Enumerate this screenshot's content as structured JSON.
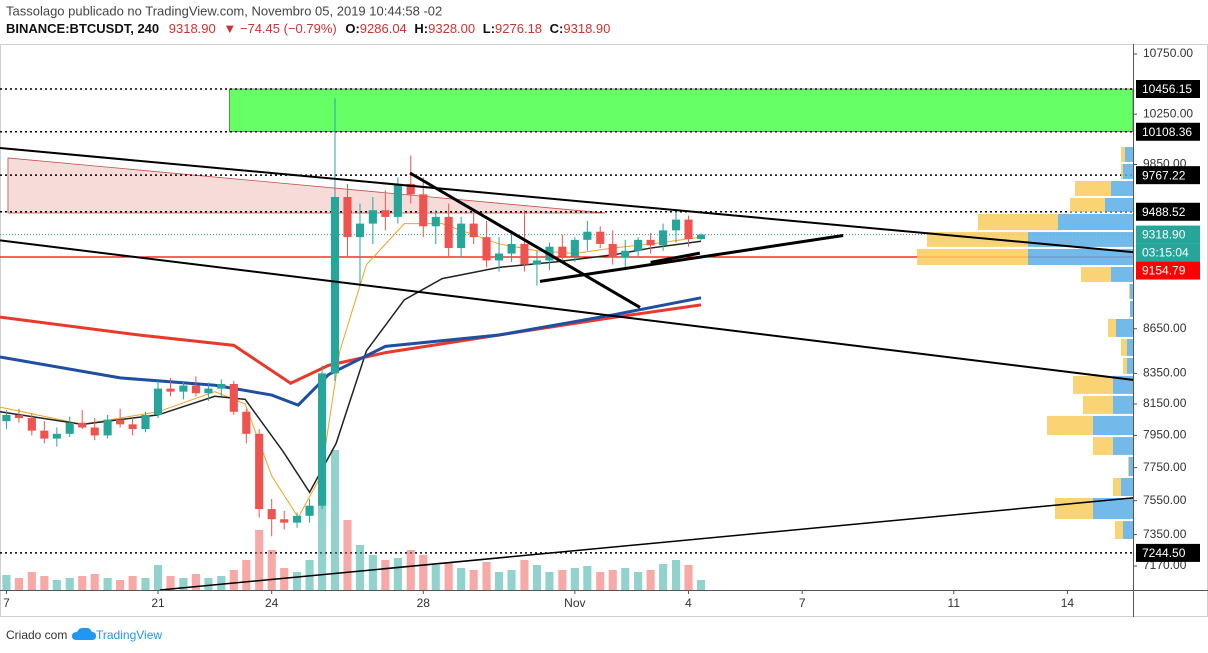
{
  "header": {
    "author_line": "Tassolago publicado no TradingView.com, Novembro 05, 2019 10:44:58 -02",
    "symbol": "BINANCE:BTCUSDT, 240",
    "last": "9318.90",
    "change": "▼ −74.45 (−0.79%)",
    "ohlc": [
      {
        "label": "O:",
        "value": "9286.04"
      },
      {
        "label": "H:",
        "value": "9328.00"
      },
      {
        "label": "L:",
        "value": "9276.18"
      },
      {
        "label": "C:",
        "value": "9318.90"
      }
    ]
  },
  "chart_data": {
    "type": "candlestick",
    "log_scale": true,
    "grid": false,
    "up_color": "#26a69a",
    "down_color": "#ef5350",
    "ylim": [
      7035,
      10835
    ],
    "yticks": [
      {
        "value": 10750,
        "label": "10750.00"
      },
      {
        "value": 10250,
        "label": "10250.00"
      },
      {
        "value": 9850,
        "label": "9850.00"
      },
      {
        "value": 8650,
        "label": "8650.00"
      },
      {
        "value": 8350,
        "label": "8350.00"
      },
      {
        "value": 8150,
        "label": "8150.00"
      },
      {
        "value": 7950,
        "label": "7950.00"
      },
      {
        "value": 7750,
        "label": "7750.00"
      },
      {
        "value": 7550,
        "label": "7550.00"
      },
      {
        "value": 7350,
        "label": "7350.00"
      },
      {
        "value": 7170,
        "label": "7170.00"
      }
    ],
    "xlim": [
      16.83,
      46.73
    ],
    "xticks": [
      {
        "value": 17,
        "label": "7"
      },
      21,
      24,
      28,
      {
        "value": 32,
        "label": "Nov"
      },
      {
        "value": 35,
        "label": "4"
      },
      {
        "value": 38,
        "label": "7"
      },
      {
        "value": 42,
        "label": "11"
      },
      {
        "value": 45,
        "label": "14"
      }
    ],
    "x": [
      17,
      17.33,
      17.67,
      18,
      18.33,
      18.67,
      19,
      19.33,
      19.67,
      20,
      20.33,
      20.67,
      21,
      21.33,
      21.67,
      22,
      22.33,
      22.67,
      23,
      23.33,
      23.67,
      24,
      24.33,
      24.67,
      25,
      25.33,
      25.67,
      26,
      26.33,
      26.67,
      27,
      27.33,
      27.67,
      28,
      28.33,
      28.67,
      29,
      29.33,
      29.67,
      30,
      30.33,
      30.67,
      31,
      31.33,
      31.67,
      32,
      32.33,
      32.67,
      33,
      33.33,
      33.67,
      34,
      34.33,
      34.67,
      35,
      35.33
    ],
    "open": [
      8040,
      8080,
      8060,
      7980,
      7930,
      7960,
      8030,
      8000,
      7950,
      8050,
      8020,
      7990,
      8080,
      8250,
      8230,
      8270,
      8220,
      8250,
      8280,
      8100,
      7960,
      7500,
      7440,
      7420,
      7460,
      7520,
      8350,
      9600,
      9300,
      9400,
      9500,
      9450,
      9700,
      9620,
      9380,
      9450,
      9220,
      9400,
      9300,
      9130,
      9180,
      9250,
      9100,
      9130,
      9230,
      9160,
      9280,
      9340,
      9250,
      9150,
      9200,
      9280,
      9240,
      9350,
      9430,
      9286.04
    ],
    "high": [
      8110,
      8120,
      8090,
      8040,
      8000,
      8070,
      8110,
      8060,
      8080,
      8120,
      8060,
      8100,
      8300,
      8320,
      8300,
      8330,
      8290,
      8310,
      8300,
      8120,
      7990,
      7560,
      7490,
      7480,
      7560,
      8400,
      10380,
      9700,
      9550,
      9600,
      9650,
      9750,
      9920,
      9750,
      9500,
      9550,
      9450,
      9480,
      9420,
      9300,
      9350,
      9500,
      9200,
      9260,
      9320,
      9300,
      9420,
      9380,
      9350,
      9280,
      9300,
      9330,
      9400,
      9500,
      9460,
      9328
    ],
    "low": [
      7990,
      8030,
      7950,
      7900,
      7880,
      7940,
      7990,
      7920,
      7930,
      8000,
      7950,
      7970,
      8060,
      8200,
      8180,
      8200,
      8170,
      8200,
      8080,
      7900,
      7450,
      7340,
      7380,
      7390,
      7420,
      7500,
      8300,
      9150,
      8950,
      9250,
      9350,
      9400,
      9550,
      9300,
      9250,
      9150,
      9150,
      9250,
      9080,
      9050,
      9120,
      9050,
      8950,
      9060,
      9120,
      9120,
      9200,
      9220,
      9100,
      9060,
      9150,
      9180,
      9200,
      9260,
      9230,
      9276.18
    ],
    "close": [
      8080,
      8060,
      7980,
      7930,
      7960,
      8030,
      8000,
      7950,
      8050,
      8020,
      7990,
      8080,
      8250,
      8230,
      8270,
      8220,
      8250,
      8280,
      8100,
      7960,
      7500,
      7440,
      7420,
      7460,
      7520,
      8350,
      9600,
      9300,
      9400,
      9500,
      9450,
      9700,
      9620,
      9380,
      9450,
      9220,
      9400,
      9300,
      9130,
      9180,
      9250,
      9100,
      9130,
      9230,
      9160,
      9280,
      9340,
      9250,
      9150,
      9200,
      9280,
      9240,
      9350,
      9430,
      9286.04,
      9318.9
    ],
    "volume": [
      15,
      12,
      18,
      14,
      10,
      12,
      14,
      16,
      12,
      10,
      14,
      12,
      25,
      14,
      12,
      16,
      12,
      14,
      20,
      30,
      60,
      40,
      22,
      18,
      30,
      110,
      140,
      70,
      45,
      35,
      30,
      32,
      40,
      35,
      25,
      28,
      22,
      20,
      28,
      18,
      20,
      30,
      25,
      18,
      20,
      22,
      24,
      18,
      20,
      22,
      18,
      20,
      26,
      30,
      25,
      10
    ],
    "moving_averages": [
      {
        "color": "#f7a21b",
        "width": 1,
        "x": [
          16.83,
          19,
          21,
          22.5,
          23.3,
          24,
          24.7,
          25.3,
          25.8,
          26.5,
          27.5,
          28.5,
          30,
          31,
          32,
          33,
          34,
          35.33
        ],
        "values": [
          8130,
          8020,
          8100,
          8230,
          8150,
          7700,
          7450,
          7700,
          8500,
          9100,
          9400,
          9400,
          9250,
          9200,
          9180,
          9220,
          9250,
          9300
        ]
      },
      {
        "color": "#222222",
        "width": 1.5,
        "x": [
          16.83,
          19,
          21,
          22.5,
          23.3,
          24.3,
          25,
          25.7,
          26.5,
          27.5,
          28.5,
          30,
          31.5,
          33,
          34,
          35.33
        ],
        "values": [
          8100,
          8020,
          8080,
          8200,
          8180,
          7850,
          7600,
          7900,
          8500,
          8850,
          9000,
          9080,
          9120,
          9170,
          9220,
          9270
        ]
      },
      {
        "color": "#e8392b",
        "width": 3,
        "x": [
          16.83,
          20.5,
          23,
          24.5,
          25.5,
          27,
          30,
          33,
          35.33
        ],
        "values": [
          8730,
          8607,
          8537,
          8285,
          8403,
          8488,
          8607,
          8727,
          8815
        ]
      },
      {
        "color": "#1e4fa3",
        "width": 3,
        "x": [
          16.83,
          20,
          22.5,
          24,
          24.7,
          25.5,
          27,
          30,
          33,
          35.33
        ],
        "values": [
          8459,
          8320,
          8272,
          8208,
          8143,
          8342,
          8530,
          8607,
          8745,
          8864
        ]
      }
    ],
    "zones": [
      {
        "color": "#66ff66",
        "x": [
          22.88,
          46.73
        ],
        "y": [
          10108.36,
          10456.15
        ]
      }
    ],
    "fills": [
      {
        "color": "rgba(214,90,80,0.22)",
        "x": [
          17.04,
          17.04,
          32.8
        ],
        "y": [
          9901,
          9479,
          9479
        ]
      }
    ],
    "trendlines": [
      {
        "color": "#000000",
        "width": 2,
        "x": [
          16.83,
          46.73
        ],
        "y": [
          9979,
          9190
        ]
      },
      {
        "color": "#000000",
        "width": 2,
        "x": [
          16.83,
          46.73
        ],
        "y": [
          9276,
          8307
        ]
      },
      {
        "color": "#000000",
        "width": 1.5,
        "x": [
          21.05,
          46.73
        ],
        "y": [
          7035,
          7567
        ]
      },
      {
        "color": "#000000",
        "width": 3,
        "x": [
          27.65,
          33.72
        ],
        "y": [
          9784,
          8797
        ]
      },
      {
        "color": "#000000",
        "width": 3,
        "x": [
          31.08,
          39.08
        ],
        "y": [
          8980,
          9312
        ]
      },
      {
        "color": "#000000",
        "width": 3,
        "x": [
          34,
          35.3
        ],
        "y": [
          9116,
          9183
        ]
      }
    ],
    "levels": [
      {
        "price": 10456.15,
        "style": "dotted",
        "color": "#000000"
      },
      {
        "price": 10108.36,
        "style": "dotted",
        "color": "#000000"
      },
      {
        "price": 9767.22,
        "style": "dotted",
        "color": "#000000"
      },
      {
        "price": 9488.52,
        "style": "dotted",
        "color": "#000000"
      },
      {
        "price": 9154.79,
        "style": "solid",
        "color": "#ff0000"
      },
      {
        "price": 7244.5,
        "price_label": "7244.50",
        "style": "dotted",
        "color": "#000000"
      }
    ],
    "current": {
      "price": 9318.9,
      "price_label": "9318.90",
      "countdown": "03:15:04",
      "color": "#26a69a"
    },
    "volume_profile": {
      "bins": [
        7319,
        7435,
        7572,
        7693,
        7822,
        7946,
        8080,
        8209,
        8340,
        8459,
        8587,
        8724,
        8849,
        8969,
        9090,
        9221,
        9345,
        9480,
        9600,
        9730,
        9862,
        9995
      ],
      "up": [
        10,
        40,
        12,
        4,
        20,
        40,
        20,
        20,
        6,
        6,
        17,
        3,
        3,
        22,
        105,
        105,
        75,
        28,
        22,
        10,
        8
      ],
      "down": [
        8,
        38,
        8,
        1,
        20,
        46,
        30,
        40,
        4,
        6,
        8,
        0,
        1,
        30,
        111,
        101,
        80,
        35,
        36,
        2,
        4
      ],
      "up_color": "#5aaee8",
      "down_color": "#f9cc5c"
    }
  },
  "footer": {
    "text": "Criado com",
    "brand": "TradingView"
  }
}
